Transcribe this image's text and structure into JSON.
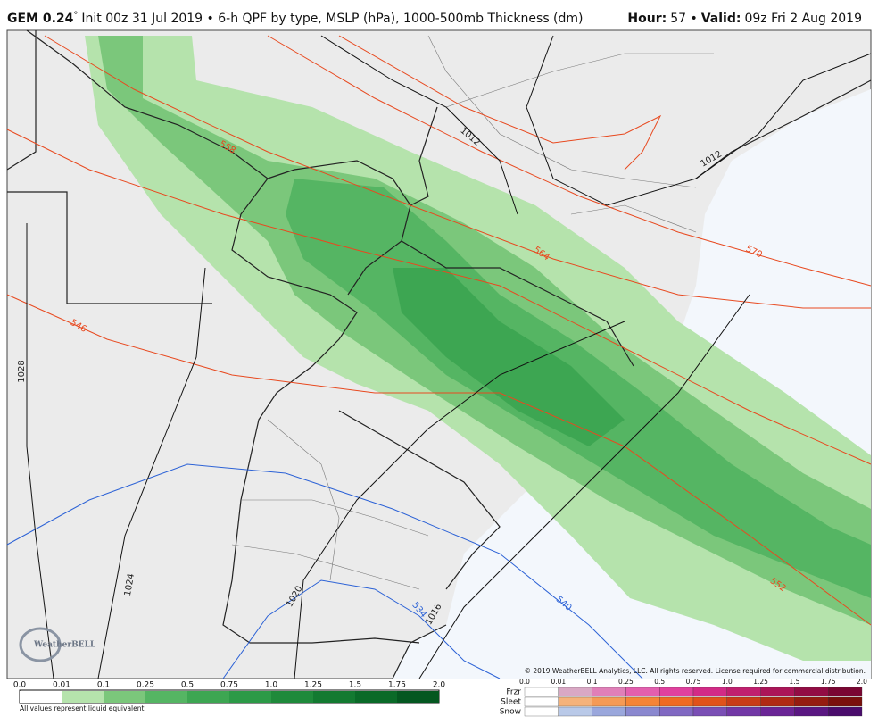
{
  "header": {
    "model": "GEM 0.24",
    "model_mark": "°",
    "description": "Init 00z 31 Jul 2019 • 6-h QPF by type, MSLP (hPa), 1000-500mb Thickness (dm)",
    "hour_label": "Hour:",
    "hour": "57 •",
    "valid_label": "Valid:",
    "valid": "09z Fri 2 Aug 2019"
  },
  "contour_labels": [
    "558",
    "564",
    "570",
    "546",
    "552",
    "540",
    "534",
    "1012",
    "1012",
    "1028",
    "1024",
    "1020",
    "1016"
  ],
  "logo": "WeatherBELL",
  "copyright": "© 2019 WeatherBELL Analytics, LLC. All rights reserved. License required for commercial distribution.",
  "qpf_scale": {
    "labels": [
      "0.0",
      "0.01",
      "0.1",
      "0.25",
      "0.5",
      "0.75",
      "1.0",
      "1.25",
      "1.5",
      "1.75",
      "2.0"
    ],
    "note": "All values represent liquid equivalent"
  },
  "type_scale": {
    "labels": [
      "0.0",
      "0.01",
      "0.1",
      "0.25",
      "0.5",
      "0.75",
      "1.0",
      "1.25",
      "1.5",
      "1.75",
      "2.0"
    ],
    "types": [
      "Frzr",
      "Sleet",
      "Snow"
    ]
  }
}
